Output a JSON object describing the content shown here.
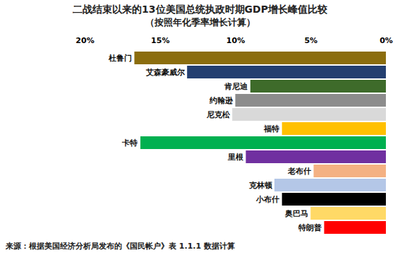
{
  "chart_data": {
    "type": "bar",
    "orientation": "horizontal",
    "title": "二战结束以来的13位美国总统执政时期GDP增长峰值比较",
    "subtitle": "（按照年化季率增长计算）",
    "caption": "来源：根据美国经济分析局发布的《国民帐户》表 1.1.1 数据计算",
    "categories": [
      "杜鲁门",
      "艾森豪威尔",
      "肯尼迪",
      "约翰逊",
      "尼克松",
      "福特",
      "卡特",
      "里根",
      "老布什",
      "克林顿",
      "小布什",
      "奥巴马",
      "特朗普"
    ],
    "values": [
      16.7,
      13.2,
      9.0,
      10.0,
      10.2,
      6.9,
      16.3,
      9.3,
      4.8,
      7.4,
      6.9,
      5.0,
      4.1
    ],
    "colors": [
      "#8b6d0e",
      "#243f70",
      "#3e6b2a",
      "#8c8c8c",
      "#d9d9d9",
      "#ffc000",
      "#00b050",
      "#7030a0",
      "#f4b183",
      "#b4c7e7",
      "#000000",
      "#ffd966",
      "#ff0000"
    ],
    "xlim": [
      20,
      0
    ],
    "xticks": [
      {
        "value": 20,
        "label": "20%"
      },
      {
        "value": 15,
        "label": "15%"
      },
      {
        "value": 10,
        "label": "10%"
      },
      {
        "value": 5,
        "label": "5%"
      },
      {
        "value": 0,
        "label": "0%"
      }
    ],
    "tick_labels": "x",
    "grid": false
  }
}
